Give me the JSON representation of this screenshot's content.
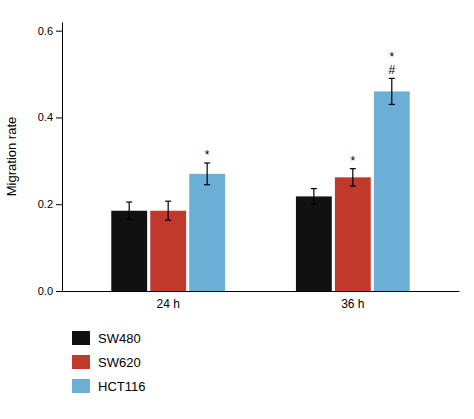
{
  "chart_data": {
    "type": "bar",
    "categories": [
      "24 h",
      "36 h"
    ],
    "series": [
      {
        "name": "SW480",
        "color": "#111111",
        "values": [
          0.185,
          0.218
        ],
        "errors": [
          0.02,
          0.018
        ]
      },
      {
        "name": "SW620",
        "color": "#c0392b",
        "values": [
          0.185,
          0.262
        ],
        "errors": [
          0.022,
          0.02
        ]
      },
      {
        "name": "HCT116",
        "color": "#6baed6",
        "values": [
          0.27,
          0.46
        ],
        "errors": [
          0.025,
          0.03
        ]
      }
    ],
    "ylabel": "Migration rate",
    "ylim": [
      0.0,
      0.62
    ],
    "yticks": [
      {
        "value": 0.0,
        "label": "0.0"
      },
      0.2,
      0.4,
      0.6
    ],
    "annotations": [
      {
        "category": "24 h",
        "series": "HCT116",
        "lines": [
          "*"
        ]
      },
      {
        "category": "36 h",
        "series": "SW620",
        "lines": [
          "*"
        ]
      },
      {
        "category": "36 h",
        "series": "HCT116",
        "lines": [
          "*",
          "#"
        ]
      }
    ],
    "grid": false,
    "legend": "bottom"
  }
}
